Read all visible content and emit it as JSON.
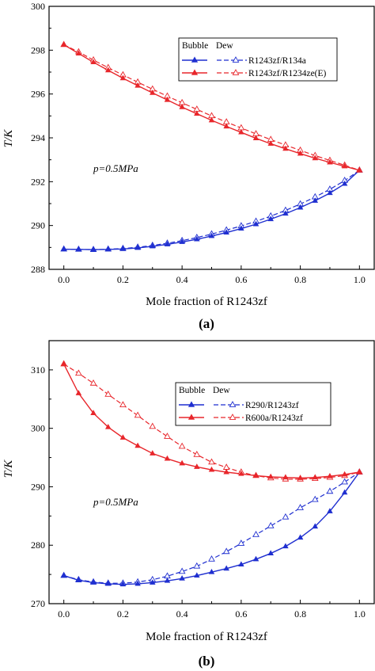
{
  "colors": {
    "blue": "#1f2fd0",
    "red": "#e8262b",
    "axis": "#000000"
  },
  "chart_data": [
    {
      "type": "line",
      "panel_label": "(a)",
      "xlabel": "Mole fraction of R1243zf",
      "ylabel": "T/K",
      "xlim": [
        -0.05,
        1.05
      ],
      "ylim": [
        288,
        300
      ],
      "xticks": [
        "0.0",
        "0.2",
        "0.4",
        "0.6",
        "0.8",
        "1.0"
      ],
      "yticks": [
        "288",
        "290",
        "292",
        "294",
        "296",
        "298",
        "300"
      ],
      "annotation": "p=0.5MPa",
      "legend": {
        "header_bubble": "Bubble",
        "header_dew": "Dew",
        "placement": "top-right"
      },
      "series": [
        {
          "name": "R1243zf/R134a",
          "color": "blue",
          "x": [
            0,
            0.05,
            0.1,
            0.15,
            0.2,
            0.25,
            0.3,
            0.35,
            0.4,
            0.45,
            0.5,
            0.55,
            0.6,
            0.65,
            0.7,
            0.75,
            0.8,
            0.85,
            0.9,
            0.95,
            1.0
          ],
          "bubble": [
            288.92,
            288.91,
            288.9,
            288.91,
            288.93,
            288.98,
            289.05,
            289.14,
            289.25,
            289.37,
            289.52,
            289.68,
            289.86,
            290.06,
            290.29,
            290.54,
            290.82,
            291.13,
            291.48,
            291.9,
            292.52
          ],
          "dew": [
            288.92,
            288.91,
            288.9,
            288.92,
            288.95,
            289.01,
            289.09,
            289.19,
            289.31,
            289.45,
            289.61,
            289.79,
            289.98,
            290.19,
            290.43,
            290.69,
            290.98,
            291.3,
            291.65,
            292.05,
            292.52
          ]
        },
        {
          "name": "R1243zf/R1234ze(E)",
          "color": "red",
          "x": [
            0,
            0.05,
            0.1,
            0.15,
            0.2,
            0.25,
            0.3,
            0.35,
            0.4,
            0.45,
            0.5,
            0.55,
            0.6,
            0.65,
            0.7,
            0.75,
            0.8,
            0.85,
            0.9,
            0.95,
            1.0
          ],
          "bubble": [
            298.25,
            297.85,
            297.45,
            297.08,
            296.72,
            296.38,
            296.05,
            295.73,
            295.4,
            295.1,
            294.8,
            294.52,
            294.25,
            293.98,
            293.73,
            293.5,
            293.28,
            293.07,
            292.88,
            292.7,
            292.52
          ],
          "dew": [
            298.25,
            297.92,
            297.55,
            297.2,
            296.87,
            296.54,
            296.22,
            295.9,
            295.6,
            295.3,
            295.0,
            294.72,
            294.45,
            294.18,
            293.92,
            293.67,
            293.43,
            293.19,
            292.97,
            292.75,
            292.52
          ]
        }
      ]
    },
    {
      "type": "line",
      "panel_label": "(b)",
      "xlabel": "Mole fraction of R1243zf",
      "ylabel": "T/K",
      "xlim": [
        -0.05,
        1.05
      ],
      "ylim": [
        270,
        315
      ],
      "xticks": [
        "0.0",
        "0.2",
        "0.4",
        "0.6",
        "0.8",
        "1.0"
      ],
      "yticks": [
        "270",
        "280",
        "290",
        "300",
        "310"
      ],
      "annotation": "p=0.5MPa",
      "legend": {
        "header_bubble": "Bubble",
        "header_dew": "Dew",
        "placement": "top-right"
      },
      "series": [
        {
          "name": "R290/R1243zf",
          "color": "blue",
          "x": [
            0,
            0.05,
            0.1,
            0.15,
            0.2,
            0.25,
            0.3,
            0.35,
            0.4,
            0.45,
            0.5,
            0.55,
            0.6,
            0.65,
            0.7,
            0.75,
            0.8,
            0.85,
            0.9,
            0.95,
            1.0
          ],
          "bubble": [
            274.8,
            274.0,
            273.6,
            273.4,
            273.3,
            273.4,
            273.6,
            273.9,
            274.3,
            274.8,
            275.4,
            276.0,
            276.7,
            277.6,
            278.6,
            279.8,
            281.3,
            283.2,
            285.8,
            289.0,
            292.5
          ],
          "dew": [
            274.8,
            274.1,
            273.7,
            273.5,
            273.5,
            273.7,
            274.1,
            274.7,
            275.5,
            276.4,
            277.6,
            278.9,
            280.3,
            281.8,
            283.3,
            284.8,
            286.4,
            287.8,
            289.2,
            290.8,
            292.5
          ]
        },
        {
          "name": "R600a/R1243zf",
          "color": "red",
          "x": [
            0,
            0.05,
            0.1,
            0.15,
            0.2,
            0.25,
            0.3,
            0.35,
            0.4,
            0.45,
            0.5,
            0.55,
            0.6,
            0.65,
            0.7,
            0.75,
            0.8,
            0.85,
            0.9,
            0.95,
            1.0
          ],
          "bubble": [
            311.0,
            306.0,
            302.6,
            300.2,
            298.4,
            297.0,
            295.7,
            294.8,
            294.0,
            293.4,
            292.9,
            292.5,
            292.2,
            291.9,
            291.7,
            291.6,
            291.5,
            291.6,
            291.8,
            292.1,
            292.5
          ],
          "dew": [
            311.0,
            309.4,
            307.7,
            305.8,
            304.0,
            302.2,
            300.3,
            298.6,
            296.9,
            295.5,
            294.2,
            293.3,
            292.5,
            291.9,
            291.5,
            291.3,
            291.3,
            291.4,
            291.6,
            291.9,
            292.5
          ]
        }
      ]
    }
  ]
}
